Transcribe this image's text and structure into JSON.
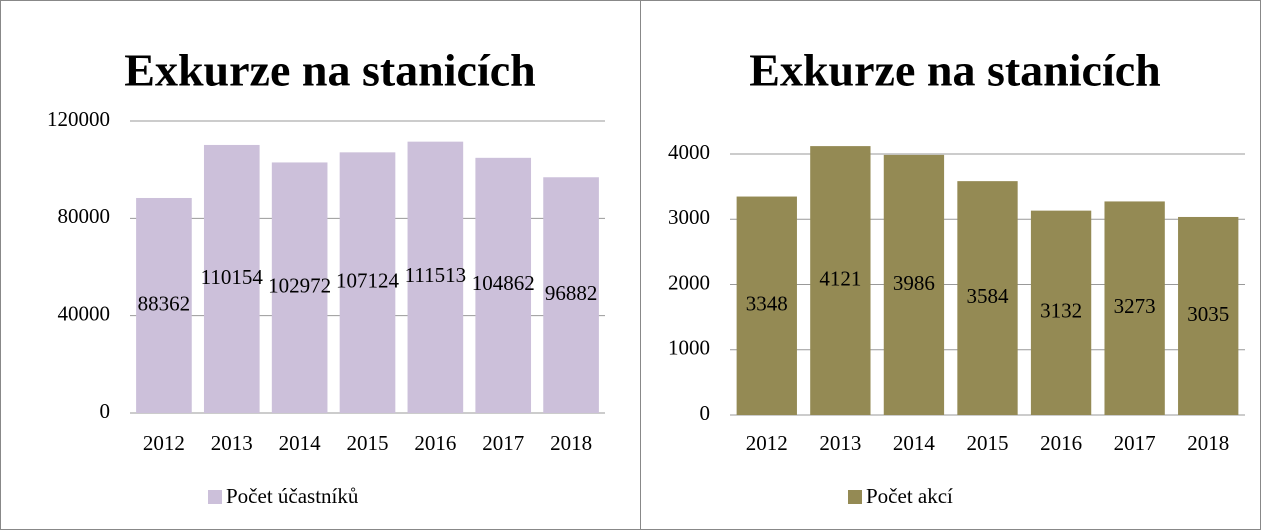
{
  "chart_data": [
    {
      "type": "bar",
      "title": "Exkurze na stanicích",
      "categories": [
        "2012",
        "2013",
        "2014",
        "2015",
        "2016",
        "2017",
        "2018"
      ],
      "series": [
        {
          "name": "Počet účastníků",
          "color": "#ccc0da",
          "values": [
            88362,
            110154,
            102972,
            107124,
            111513,
            104862,
            96882
          ]
        }
      ],
      "ylim": [
        0,
        120000
      ],
      "yticks": [
        0,
        40000,
        80000,
        120000
      ],
      "grid": true,
      "legend": "bottom"
    },
    {
      "type": "bar",
      "title": "Exkurze na stanicích",
      "categories": [
        "2012",
        "2013",
        "2014",
        "2015",
        "2016",
        "2017",
        "2018"
      ],
      "series": [
        {
          "name": "Počet akcí",
          "color": "#948a54",
          "values": [
            3348,
            4121,
            3986,
            3584,
            3132,
            3273,
            3035
          ]
        }
      ],
      "ylim": [
        0,
        4000
      ],
      "yticks": [
        0,
        1000,
        2000,
        3000,
        4000
      ],
      "grid": true,
      "legend": "bottom"
    }
  ]
}
